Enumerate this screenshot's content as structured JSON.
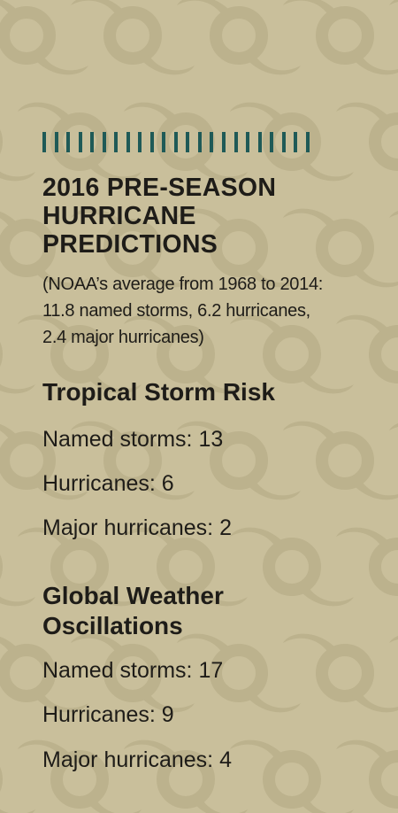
{
  "header": {
    "title_lines": [
      "2016 PRE-SEASON",
      "HURRICANE",
      "PREDICTIONS"
    ],
    "note_lines": [
      "(NOAA’s average from 1968 to 2014:",
      "11.8 named storms, 6.2 hurricanes,",
      "2.4 major hurricanes)"
    ]
  },
  "sections": [
    {
      "heading": "Tropical Storm Risk",
      "stats": [
        {
          "label": "Named storms:",
          "value": "13"
        },
        {
          "label": "Hurricanes:",
          "value": "6"
        },
        {
          "label": "Major hurricanes:",
          "value": "2"
        }
      ]
    },
    {
      "heading_lines": [
        "Global Weather",
        "Oscillations"
      ],
      "stats": [
        {
          "label": "Named storms:",
          "value": "17"
        },
        {
          "label": "Hurricanes:",
          "value": "9"
        },
        {
          "label": "Major hurricanes:",
          "value": "4"
        }
      ]
    }
  ],
  "colors": {
    "background": "#c9bf9b",
    "pattern": "#bdb38e",
    "accent_ticks": "#1f5a57",
    "text": "#1e1c18"
  },
  "decoration": {
    "background_icon": "hurricane-symbol-icon",
    "tick_count": 23
  }
}
